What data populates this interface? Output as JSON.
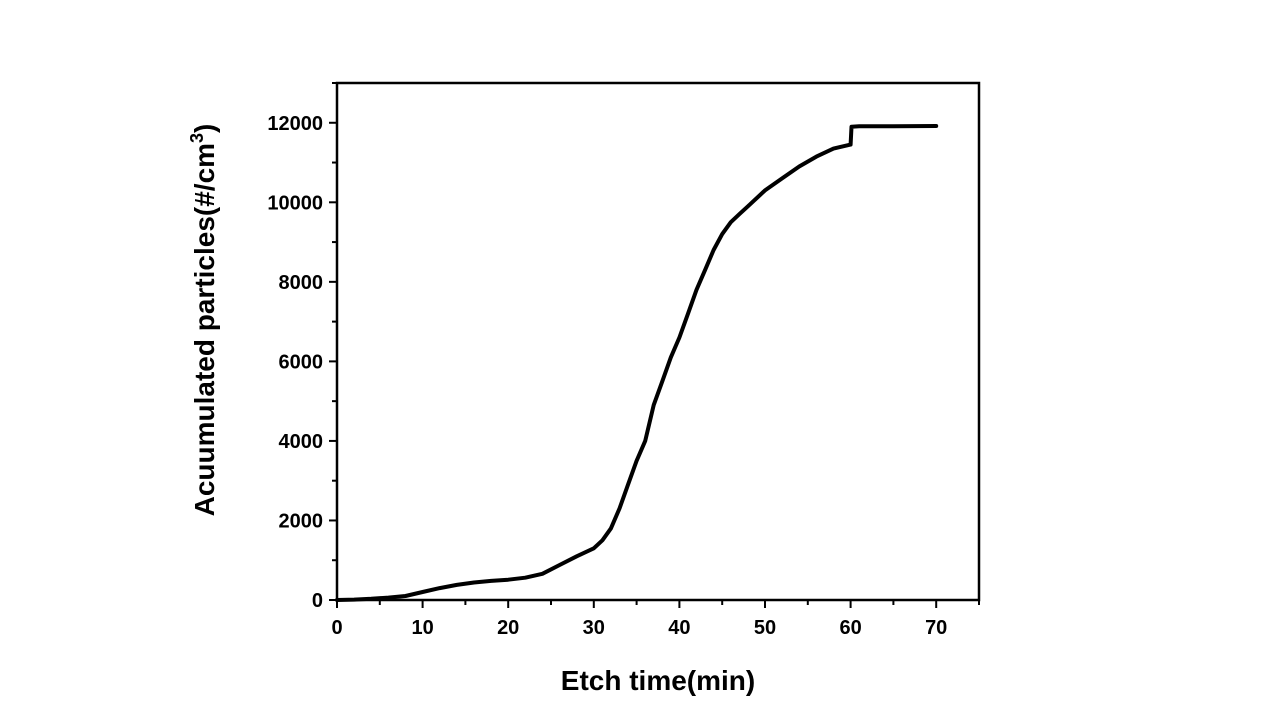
{
  "chart_data": {
    "type": "line",
    "title": "",
    "xlabel": "Etch time(min)",
    "ylabel_main": "Acuumulated particles(#/cm",
    "ylabel_sup": "3",
    "ylabel_close": ")",
    "xlim": [
      0,
      75
    ],
    "ylim": [
      0,
      13000
    ],
    "xticks": [
      0,
      10,
      20,
      30,
      40,
      50,
      60,
      70
    ],
    "yticks": [
      0,
      2000,
      4000,
      6000,
      8000,
      10000,
      12000
    ],
    "grid": false,
    "series": [
      {
        "color": "#000000",
        "x": [
          0,
          2,
          4,
          6,
          8,
          10,
          12,
          14,
          16,
          18,
          20,
          22,
          24,
          26,
          28,
          30,
          31,
          32,
          33,
          34,
          35,
          36,
          37,
          38,
          39,
          40,
          41,
          42,
          43,
          44,
          45,
          46,
          47,
          48,
          50,
          52,
          54,
          56,
          58,
          60,
          60.1,
          61,
          65,
          70
        ],
        "y": [
          0,
          10,
          30,
          60,
          100,
          200,
          300,
          380,
          440,
          480,
          510,
          560,
          660,
          880,
          1100,
          1300,
          1500,
          1800,
          2300,
          2900,
          3500,
          4000,
          4900,
          5500,
          6100,
          6600,
          7200,
          7800,
          8300,
          8800,
          9200,
          9500,
          9700,
          9900,
          10300,
          10600,
          10900,
          11150,
          11350,
          11450,
          11900,
          11910,
          11910,
          11920
        ]
      }
    ]
  }
}
